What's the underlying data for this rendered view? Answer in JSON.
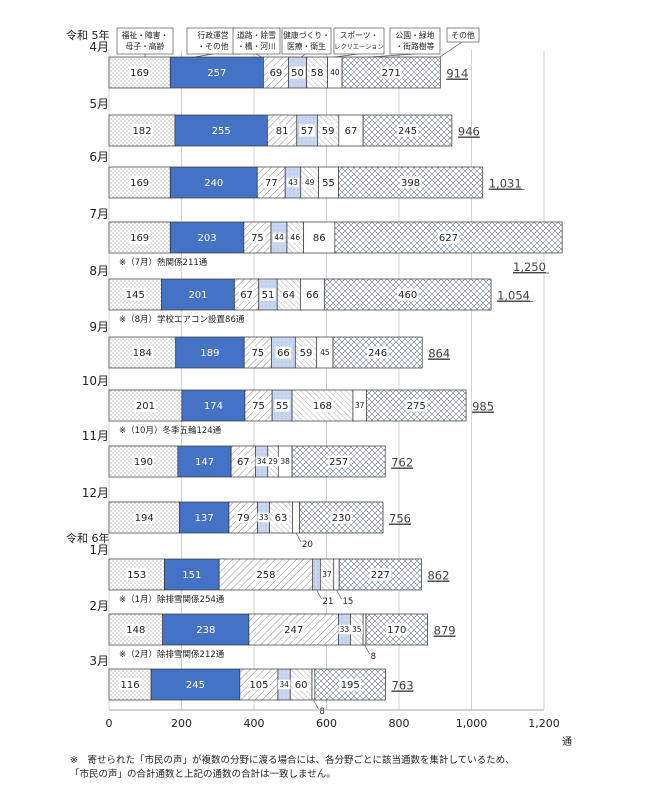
{
  "chart_data": {
    "type": "bar",
    "stacked": true,
    "orientation": "horizontal",
    "unit": "通",
    "xlim": [
      0,
      1200
    ],
    "xticks": [
      "0",
      "200",
      "400",
      "600",
      "800",
      "1,000",
      "1,200"
    ],
    "grid": true,
    "era_labels": [
      {
        "before_row": 0,
        "text": "令和 5年"
      },
      {
        "before_row": 9,
        "text": "令和 6年"
      }
    ],
    "series": [
      {
        "name": "福祉・障害・\n母子・高齢",
        "pattern": "dots",
        "color": "#ffffff"
      },
      {
        "name": "行政運営\n・その他",
        "pattern": "solid",
        "color": "#4472c4"
      },
      {
        "name": "道路・除雪\n・橋・河川",
        "pattern": "diag",
        "color": "#ffffff"
      },
      {
        "name": "健康づくり・\n医療・衛生",
        "pattern": "light",
        "color": "#c5d3ee"
      },
      {
        "name": "スポーツ・\nレクリエーション",
        "pattern": "hatch",
        "color": "#ffffff"
      },
      {
        "name": "公園・緑地\n・街路樹等",
        "pattern": "plain",
        "color": "#ffffff"
      },
      {
        "name": "その他",
        "pattern": "cross",
        "color": "#ffffff"
      }
    ],
    "categories": [
      "4月",
      "5月",
      "6月",
      "7月",
      "8月",
      "9月",
      "10月",
      "11月",
      "12月",
      "1月",
      "2月",
      "3月"
    ],
    "values": [
      [
        169,
        257,
        69,
        50,
        58,
        40,
        271
      ],
      [
        182,
        255,
        81,
        57,
        59,
        67,
        245
      ],
      [
        169,
        240,
        77,
        43,
        49,
        55,
        398
      ],
      [
        169,
        203,
        75,
        44,
        46,
        86,
        627
      ],
      [
        145,
        201,
        67,
        51,
        64,
        66,
        460
      ],
      [
        184,
        189,
        75,
        66,
        59,
        45,
        246
      ],
      [
        201,
        174,
        75,
        55,
        168,
        37,
        275
      ],
      [
        190,
        147,
        67,
        34,
        29,
        38,
        257
      ],
      [
        194,
        137,
        79,
        33,
        63,
        20,
        230
      ],
      [
        153,
        151,
        258,
        21,
        37,
        15,
        227
      ],
      [
        148,
        238,
        247,
        33,
        35,
        8,
        170
      ],
      [
        116,
        245,
        105,
        34,
        60,
        8,
        195
      ]
    ],
    "totals": [
      "914",
      "946",
      "1,031",
      "1,250",
      "1,054",
      "864",
      "985",
      "762",
      "756",
      "862",
      "879",
      "763"
    ],
    "notes": [
      {
        "row": 3,
        "text": "※（7月）熱関係211通"
      },
      {
        "row": 4,
        "text": "※（8月）学校エアコン設置86通"
      },
      {
        "row": 6,
        "text": "※（10月）冬季五輪124通"
      },
      {
        "row": 9,
        "text": "※（1月）除排雪関係254通"
      },
      {
        "row": 10,
        "text": "※（2月）除排雪関係212通"
      }
    ]
  },
  "footnote": {
    "line1": "※　寄せられた「市民の声」が複数の分野に渡る場合には、各分野ごとに該当通数を集計しているため、",
    "line2": "「市民の声」の合計通数と上記の通数の合計は一致しません。"
  }
}
